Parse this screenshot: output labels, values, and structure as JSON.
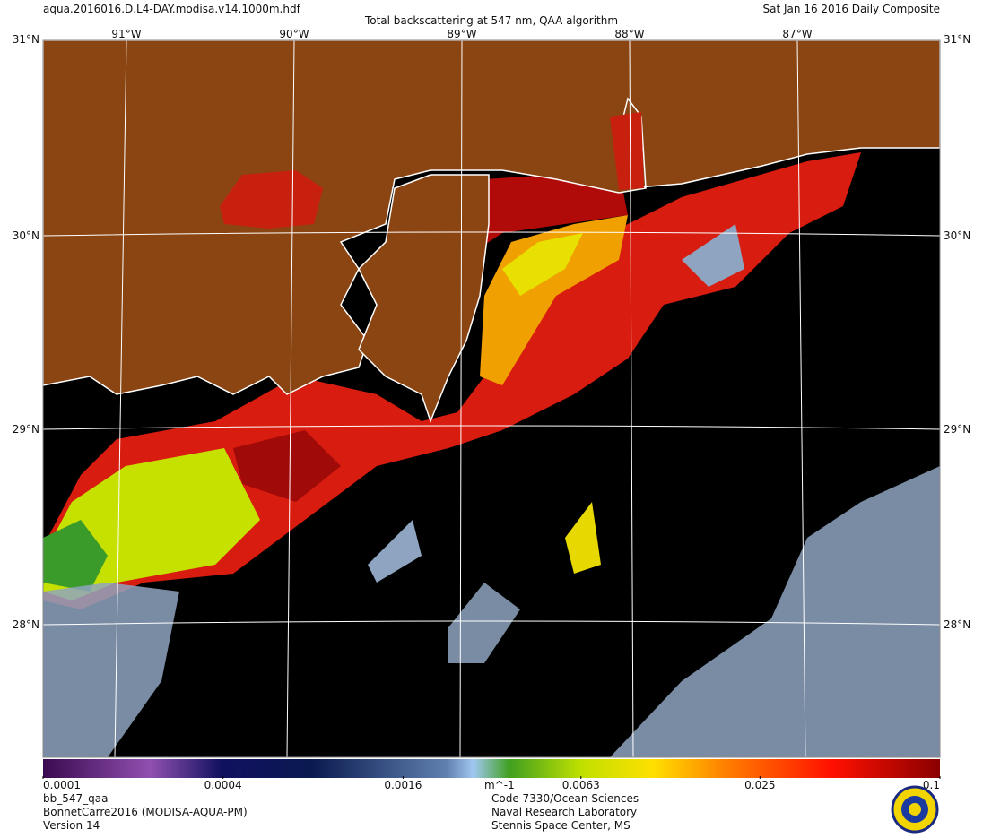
{
  "header": {
    "file": "aqua.2016016.D.L4-DAY.modisa.v14.1000m.hdf",
    "title": "Total backscattering at 547 nm, QAA algorithm",
    "date": "Sat Jan 16 2016 Daily Composite"
  },
  "map": {
    "lon_labels": [
      "91°W",
      "90°W",
      "89°W",
      "88°W",
      "87°W"
    ],
    "lat_labels": [
      "31°N",
      "30°N",
      "29°N",
      "28°N"
    ]
  },
  "colorbar": {
    "range": [
      0.0001,
      0.1
    ],
    "log": true,
    "ticks": [
      0.0001,
      0.0004,
      0.0016,
      0.0063,
      0.025,
      0.1
    ],
    "unit": "m^-1"
  },
  "footer": {
    "left": [
      "bb_547_qaa",
      "BonnetCarre2016 (MODISA-AQUA-PM)",
      "Version 14"
    ],
    "center": [
      "Code 7330/Ocean Sciences",
      "Naval Research Laboratory",
      "Stennis Space Center, MS"
    ]
  }
}
